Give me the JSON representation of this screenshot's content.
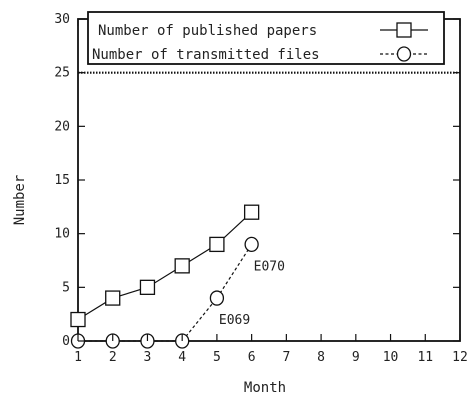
{
  "chart_data": {
    "type": "line",
    "x": [
      1,
      2,
      3,
      4,
      5,
      6
    ],
    "series": [
      {
        "name": "Number of published papers",
        "values": [
          2,
          4,
          5,
          7,
          9,
          12
        ],
        "marker": "square",
        "line_style": "solid"
      },
      {
        "name": "Number of transmitted files",
        "values": [
          0,
          0,
          0,
          0,
          4,
          9
        ],
        "marker": "circle",
        "line_style": "dashed"
      }
    ],
    "xlabel": "Month",
    "ylabel": "Number",
    "xlim": [
      1,
      12
    ],
    "ylim": [
      0,
      30
    ],
    "xticks": [
      "1",
      "2",
      "3",
      "4",
      "5",
      "6",
      "7",
      "8",
      "9",
      "10",
      "11",
      "12"
    ],
    "yticks": [
      "0",
      "5",
      "10",
      "15",
      "20",
      "25",
      "30"
    ],
    "reference_line": {
      "y": 25,
      "style": "dotted"
    },
    "annotations": [
      {
        "text": "E069",
        "x": 5,
        "y": 4
      },
      {
        "text": "E070",
        "x": 6,
        "y": 9
      }
    ],
    "grid": false,
    "legend": "top-center"
  }
}
